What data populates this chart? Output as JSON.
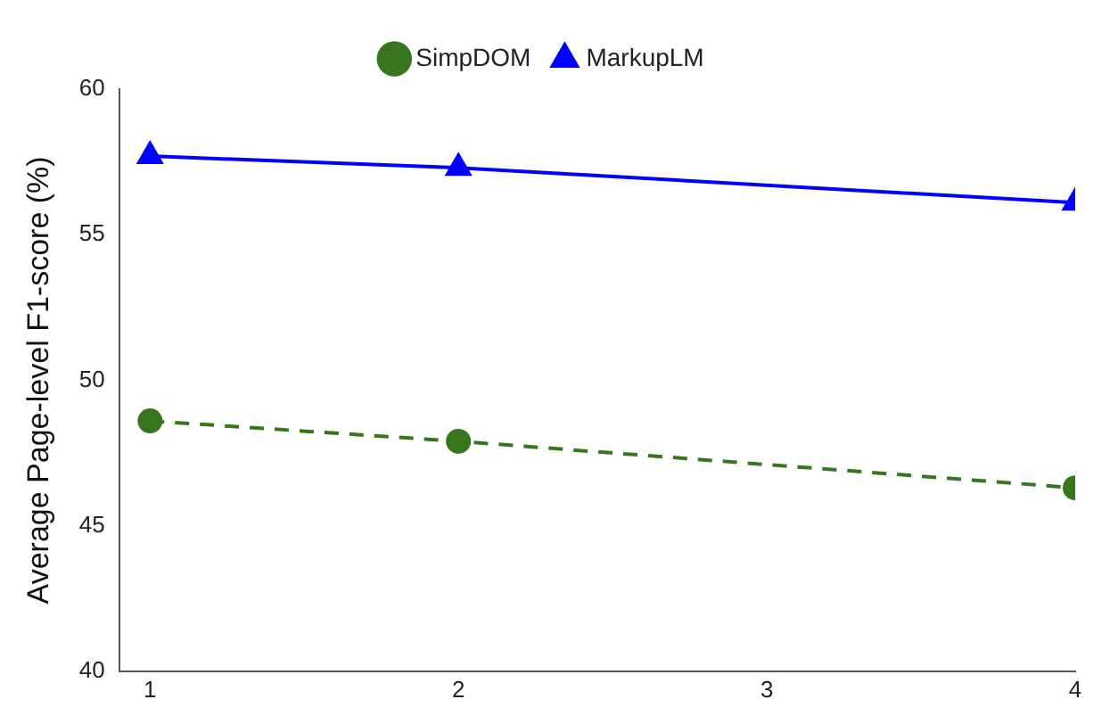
{
  "chart_data": {
    "type": "line",
    "ylabel": "Average Page-level F1-score (%)",
    "x": [
      1,
      2,
      4
    ],
    "xlim": [
      0.9,
      4
    ],
    "xticks": [
      1,
      2,
      3,
      4
    ],
    "ylim": [
      40,
      60
    ],
    "yticks": [
      40,
      45,
      50,
      55,
      60
    ],
    "grid": false,
    "legend": "top",
    "series": [
      {
        "name": "SimpDOM",
        "color": "#38761d",
        "values": [
          48.6,
          47.9,
          46.3
        ],
        "marker": "circle",
        "line_style": "dashed"
      },
      {
        "name": "MarkupLM",
        "color": "#0000ff",
        "values": [
          57.7,
          57.3,
          56.1
        ],
        "marker": "triangle",
        "line_style": "solid"
      }
    ]
  }
}
